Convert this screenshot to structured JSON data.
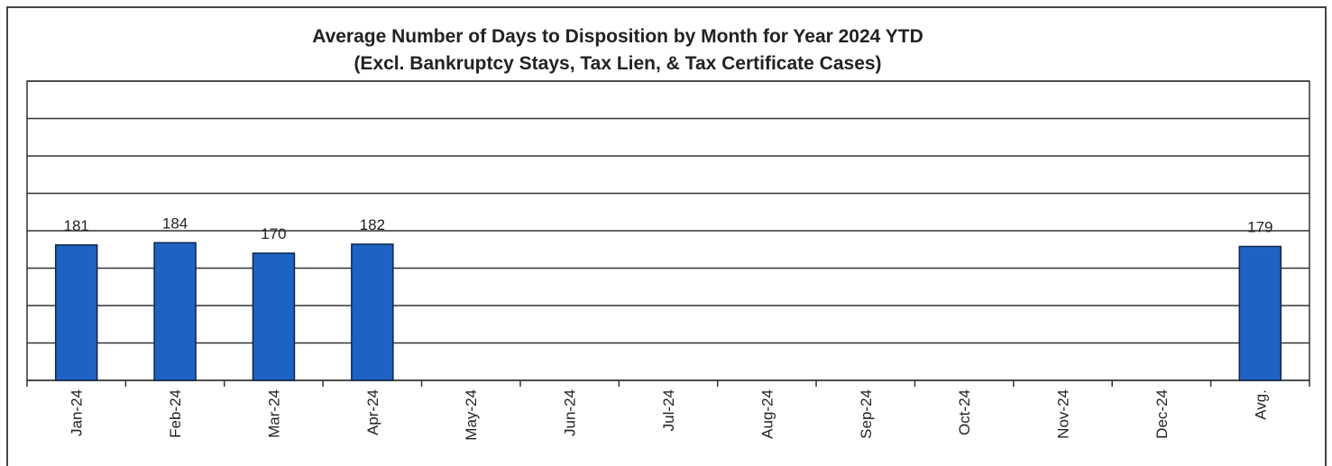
{
  "chart_data": {
    "type": "bar",
    "title": "Average Number of Days to Disposition  by Month for Year 2024 YTD",
    "subtitle": "(Excl. Bankruptcy Stays, Tax Lien, & Tax Certificate Cases)",
    "categories": [
      "Jan-24",
      "Feb-24",
      "Mar-24",
      "Apr-24",
      "May-24",
      "Jun-24",
      "Jul-24",
      "Aug-24",
      "Sep-24",
      "Oct-24",
      "Nov-24",
      "Dec-24",
      "Avg."
    ],
    "values": [
      181,
      184,
      170,
      182,
      null,
      null,
      null,
      null,
      null,
      null,
      null,
      null,
      179
    ],
    "color": "#1e63c4",
    "ylim": [
      0,
      400
    ],
    "yticks": [
      0,
      50,
      100,
      150,
      200,
      250,
      300,
      350,
      400
    ],
    "grid": true
  }
}
